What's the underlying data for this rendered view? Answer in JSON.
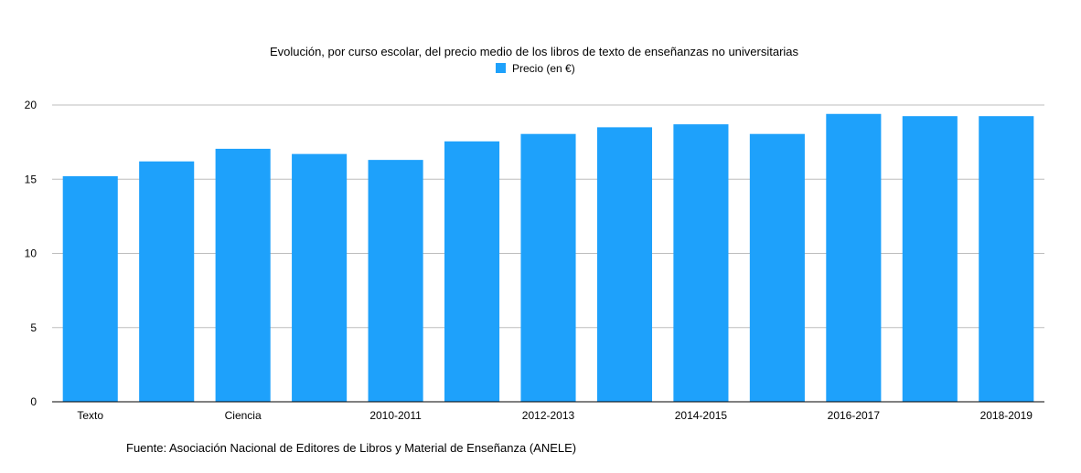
{
  "chart_data": {
    "type": "bar",
    "title": "Evolución, por curso escolar,  del precio medio de los libros de texto de enseñanzas no universitarias",
    "source": "Fuente: Asociación Nacional de Editores de Libros y Material de Enseñanza (ANELE)",
    "xlabel": "",
    "ylabel": "",
    "ylim": [
      0,
      20
    ],
    "yticks": [
      "0",
      "5",
      "10",
      "15",
      "20"
    ],
    "grid": true,
    "legend": "top-center",
    "categories": [
      "Texto",
      "",
      "Ciencia",
      "",
      "2010-2011",
      "",
      "2012-2013",
      "",
      "2014-2015",
      "",
      "2016-2017",
      "",
      "2018-2019"
    ],
    "series": [
      {
        "name": "Precio (en €)",
        "color": "#1ea1fb",
        "values": [
          15.2,
          16.2,
          17.05,
          16.7,
          16.3,
          17.55,
          18.05,
          18.5,
          18.7,
          18.05,
          19.4,
          19.25,
          19.25
        ]
      }
    ]
  }
}
